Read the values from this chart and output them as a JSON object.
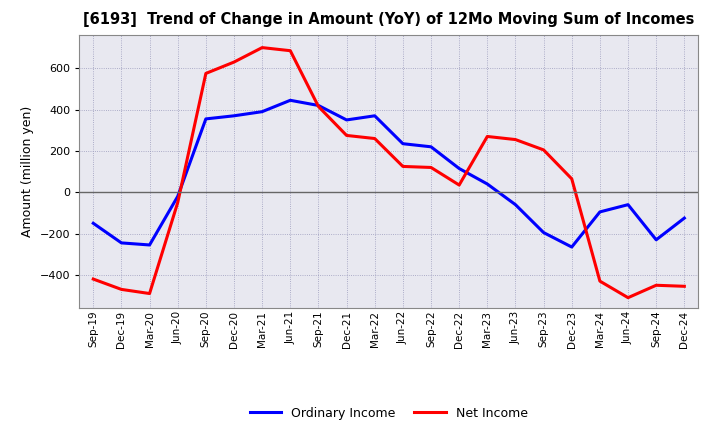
{
  "title": "[6193]  Trend of Change in Amount (YoY) of 12Mo Moving Sum of Incomes",
  "ylabel": "Amount (million yen)",
  "x_labels": [
    "Sep-19",
    "Dec-19",
    "Mar-20",
    "Jun-20",
    "Sep-20",
    "Dec-20",
    "Mar-21",
    "Jun-21",
    "Sep-21",
    "Dec-21",
    "Mar-22",
    "Jun-22",
    "Sep-22",
    "Dec-22",
    "Mar-23",
    "Jun-23",
    "Sep-23",
    "Dec-23",
    "Mar-24",
    "Jun-24",
    "Sep-24",
    "Dec-24"
  ],
  "ordinary_income": [
    -150,
    -245,
    -255,
    -20,
    355,
    370,
    390,
    445,
    420,
    350,
    370,
    235,
    220,
    115,
    40,
    -60,
    -195,
    -265,
    -95,
    -60,
    -230,
    -125
  ],
  "net_income": [
    -420,
    -470,
    -490,
    -50,
    575,
    630,
    700,
    685,
    415,
    275,
    260,
    125,
    120,
    35,
    270,
    255,
    205,
    65,
    -430,
    -510,
    -450,
    -455
  ],
  "ordinary_income_color": "#0000FF",
  "net_income_color": "#FF0000",
  "ylim": [
    -560,
    760
  ],
  "yticks": [
    -400,
    -200,
    0,
    200,
    400,
    600
  ],
  "background_color": "#FFFFFF",
  "plot_bg_color": "#E8E8F0",
  "grid_color": "#9999BB",
  "legend_ordinary": "Ordinary Income",
  "legend_net": "Net Income",
  "line_width": 2.2
}
